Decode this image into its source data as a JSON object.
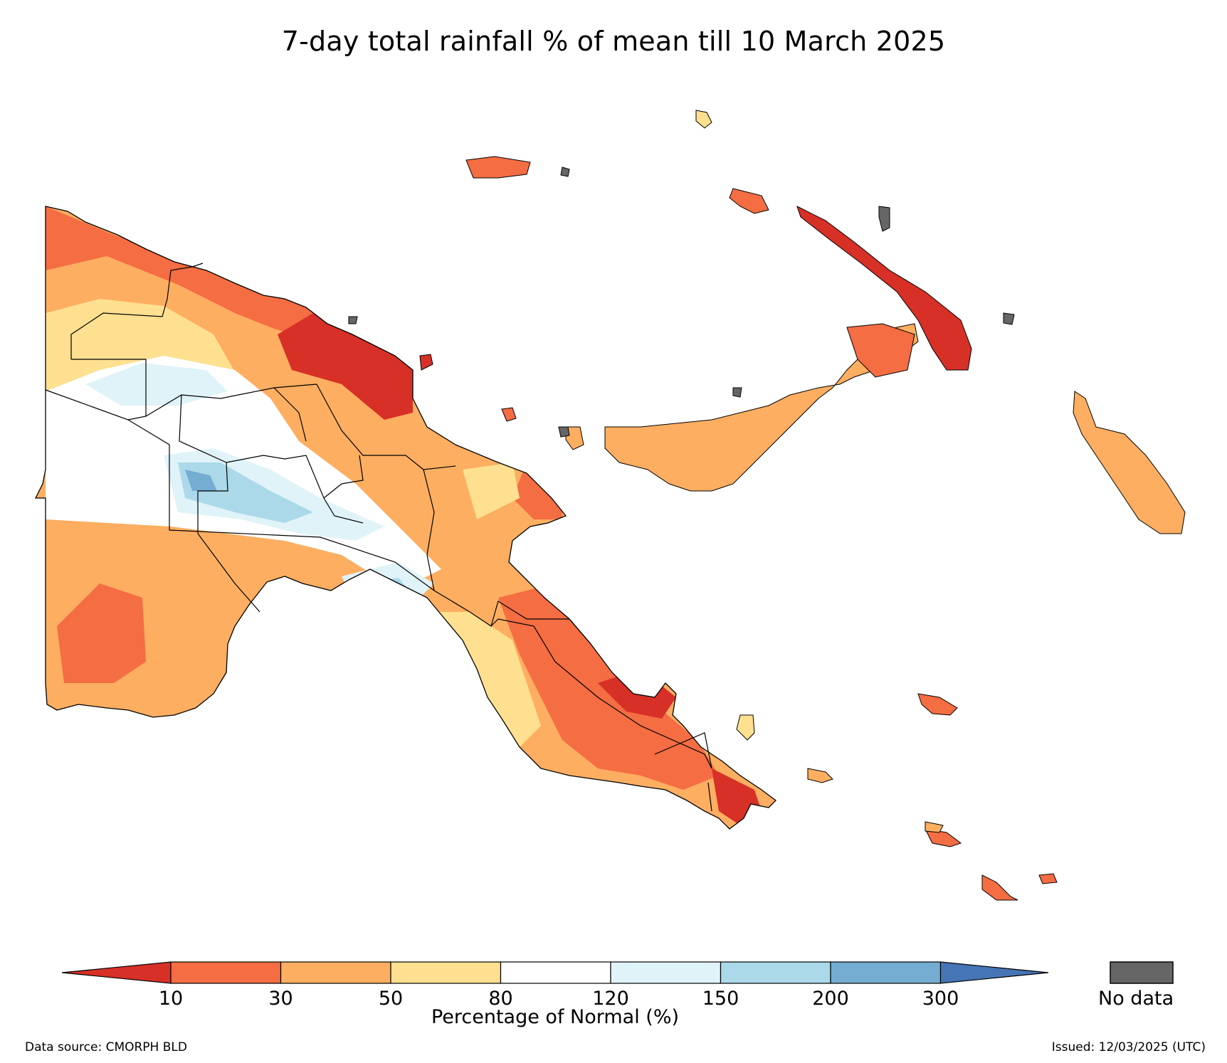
{
  "title": "7-day total rainfall % of mean till 10 March 2025",
  "colors": {
    "lt10": "#d73027",
    "b10_30": "#f46d43",
    "b30_50": "#fdae61",
    "b50_80": "#fee090",
    "b80_120": "#ffffff",
    "b120_150": "#e0f3f8",
    "b150_200": "#abd9e9",
    "b200_300": "#74add1",
    "gt300": "#4575b4",
    "nodata": "#666666"
  },
  "legend": {
    "ticks": [
      "10",
      "30",
      "50",
      "80",
      "120",
      "150",
      "200",
      "300"
    ],
    "label": "Percentage of Normal (%)",
    "nodata_label": "No data"
  },
  "footer": {
    "source": "Data source: CMORPH BLD",
    "issued": "Issued: 12/03/2025 (UTC)"
  }
}
